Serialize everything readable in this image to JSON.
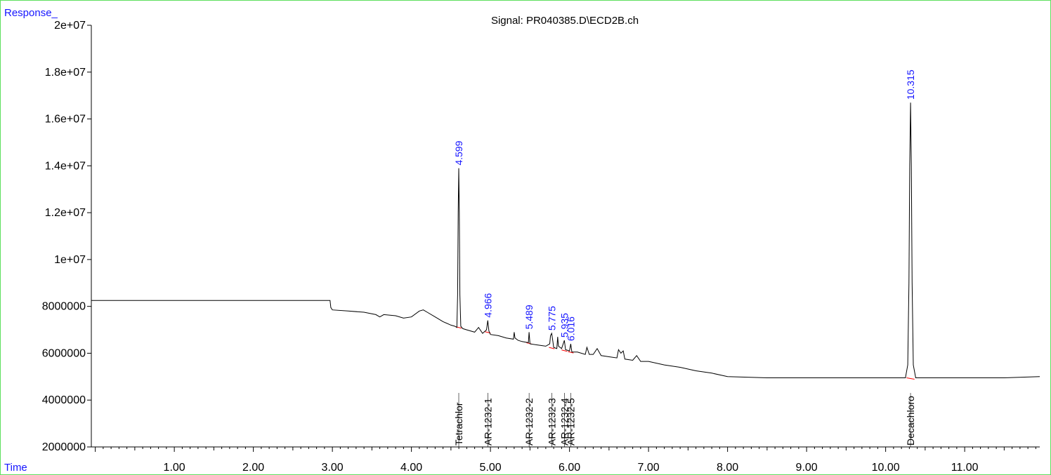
{
  "corner_labels": {
    "y_corner": "Response_",
    "x_corner": "Time"
  },
  "colors": {
    "frame": "#5ee05e",
    "corner_labels": "#1515ff",
    "trace": "#000000",
    "peak_labels": "#1515ff",
    "baseline_marks": "#ff0000",
    "compound_labels": "#000000"
  },
  "chart_data": {
    "type": "line",
    "title": "Signal: PR040385.D\\ECD2B.ch",
    "xlabel": "Time",
    "ylabel": "Response_",
    "xlim": [
      -0.05,
      11.95
    ],
    "ylim": [
      2000000,
      20000000
    ],
    "grid": false,
    "x_ticks": [
      {
        "v": 1,
        "label": "1.00"
      },
      {
        "v": 2,
        "label": "2.00"
      },
      {
        "v": 3,
        "label": "3.00"
      },
      {
        "v": 4,
        "label": "4.00"
      },
      {
        "v": 5,
        "label": "5.00"
      },
      {
        "v": 6,
        "label": "6.00"
      },
      {
        "v": 7,
        "label": "7.00"
      },
      {
        "v": 8,
        "label": "8.00"
      },
      {
        "v": 9,
        "label": "9.00"
      },
      {
        "v": 10,
        "label": "10.00"
      },
      {
        "v": 11,
        "label": "11.00"
      }
    ],
    "y_ticks": [
      {
        "v": 2000000,
        "label": "2000000"
      },
      {
        "v": 4000000,
        "label": "4000000"
      },
      {
        "v": 6000000,
        "label": "6000000"
      },
      {
        "v": 8000000,
        "label": "8000000"
      },
      {
        "v": 10000000,
        "label": "1e+07"
      },
      {
        "v": 12000000,
        "label": "1.2e+07"
      },
      {
        "v": 14000000,
        "label": "1.4e+07"
      },
      {
        "v": 16000000,
        "label": "1.6e+07"
      },
      {
        "v": 18000000,
        "label": "1.8e+07"
      },
      {
        "v": 20000000,
        "label": "2e+07"
      }
    ],
    "series": [
      {
        "x": [
          -0.05,
          2.97,
          2.98,
          3.0,
          3.2,
          3.4,
          3.55,
          3.6,
          3.65,
          3.8,
          3.9,
          4.0,
          4.1,
          4.15,
          4.2,
          4.3,
          4.4,
          4.5,
          4.55,
          4.575,
          4.585,
          4.592,
          4.599,
          4.606,
          4.613,
          4.625,
          4.65,
          4.7,
          4.8,
          4.85,
          4.9,
          4.95,
          4.966,
          4.98,
          5.0,
          5.1,
          5.2,
          5.29,
          5.3,
          5.31,
          5.35,
          5.4,
          5.48,
          5.489,
          5.5,
          5.6,
          5.7,
          5.75,
          5.76,
          5.775,
          5.79,
          5.8,
          5.84,
          5.85,
          5.86,
          5.9,
          5.935,
          5.95,
          6.0,
          6.016,
          6.03,
          6.1,
          6.2,
          6.22,
          6.25,
          6.3,
          6.35,
          6.4,
          6.5,
          6.6,
          6.62,
          6.65,
          6.68,
          6.7,
          6.8,
          6.85,
          6.9,
          7.0,
          7.2,
          7.4,
          7.6,
          7.8,
          8.0,
          8.5,
          9.0,
          9.5,
          10.0,
          10.25,
          10.28,
          10.295,
          10.305,
          10.315,
          10.325,
          10.335,
          10.35,
          10.38,
          10.5,
          11.0,
          11.5,
          11.95
        ],
        "y": [
          8250000,
          8250000,
          7950000,
          7850000,
          7800000,
          7750000,
          7650000,
          7550000,
          7650000,
          7600000,
          7500000,
          7550000,
          7800000,
          7850000,
          7750000,
          7550000,
          7350000,
          7200000,
          7150000,
          7100000,
          8500000,
          12000000,
          13900000,
          12000000,
          8500000,
          7150000,
          7050000,
          7000000,
          6900000,
          7100000,
          6850000,
          7000000,
          7400000,
          6950000,
          6800000,
          6750000,
          6650000,
          6600000,
          6900000,
          6650000,
          6550000,
          6500000,
          6450000,
          6900000,
          6400000,
          6350000,
          6300000,
          6400000,
          6750000,
          6850000,
          6500000,
          6250000,
          6200000,
          6700000,
          6300000,
          6200000,
          6550000,
          6150000,
          6100000,
          6400000,
          6050000,
          6050000,
          5950000,
          6250000,
          5950000,
          5950000,
          6200000,
          5900000,
          5850000,
          5800000,
          6150000,
          6000000,
          6100000,
          5750000,
          5700000,
          5900000,
          5650000,
          5650000,
          5500000,
          5400000,
          5250000,
          5150000,
          5000000,
          4950000,
          4950000,
          4950000,
          4950000,
          4950000,
          5500000,
          9000000,
          14000000,
          16700000,
          14000000,
          9000000,
          5500000,
          4950000,
          4950000,
          4950000,
          4950000,
          5000000
        ]
      }
    ],
    "peaks": [
      {
        "rt": 4.599,
        "label": "4.599",
        "apex": 13900000,
        "base": 7130000
      },
      {
        "rt": 4.966,
        "label": "4.966",
        "apex": 7400000,
        "base": 6920000
      },
      {
        "rt": 5.489,
        "label": "5.489",
        "apex": 6900000,
        "base": 6450000
      },
      {
        "rt": 5.775,
        "label": "5.775",
        "apex": 6850000,
        "base": 6250000
      },
      {
        "rt": 5.935,
        "label": "5.935",
        "apex": 6550000,
        "base": 6140000
      },
      {
        "rt": 6.016,
        "label": "6.016",
        "apex": 6400000,
        "base": 6070000
      },
      {
        "rt": 10.315,
        "label": "10.315",
        "apex": 16700000,
        "base": 4950000
      }
    ],
    "compounds": [
      {
        "rt": 4.599,
        "label": "Tetrachlor"
      },
      {
        "rt": 4.966,
        "label": "AR-1232-1"
      },
      {
        "rt": 5.489,
        "label": "AR-1232-2"
      },
      {
        "rt": 5.775,
        "label": "AR-1232-3"
      },
      {
        "rt": 5.935,
        "label": "AR-1232-4"
      },
      {
        "rt": 6.016,
        "label": "AR-1232-5"
      },
      {
        "rt": 10.315,
        "label": "Decachloro"
      }
    ]
  }
}
